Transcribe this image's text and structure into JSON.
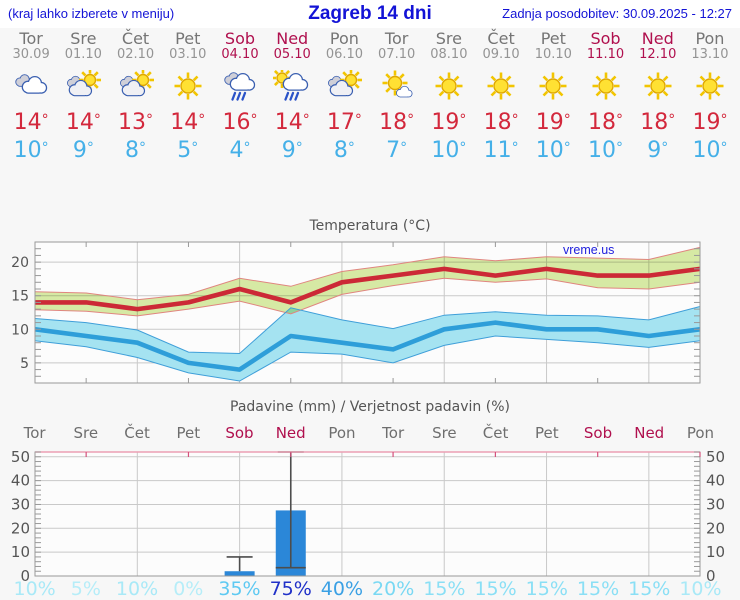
{
  "header": {
    "left_note": "(kraj lahko izberete v meniju)",
    "title": "Zagreb 14 dni",
    "updated": "Zadnja posodobitev: 30.09.2025 - 12:27"
  },
  "watermark": "vreme.us",
  "forecast": {
    "degree": "°",
    "days": [
      {
        "name": "Tor",
        "date": "30.09",
        "weekend": false,
        "icon": "cloudy",
        "tmax": "14",
        "tmin": "10"
      },
      {
        "name": "Sre",
        "date": "01.10",
        "weekend": false,
        "icon": "partly-cloudy",
        "tmax": "14",
        "tmin": "9"
      },
      {
        "name": "Čet",
        "date": "02.10",
        "weekend": false,
        "icon": "partly-cloudy",
        "tmax": "13",
        "tmin": "8"
      },
      {
        "name": "Pet",
        "date": "03.10",
        "weekend": false,
        "icon": "sunny",
        "tmax": "14",
        "tmin": "5"
      },
      {
        "name": "Sob",
        "date": "04.10",
        "weekend": true,
        "icon": "rain",
        "tmax": "16",
        "tmin": "4"
      },
      {
        "name": "Ned",
        "date": "05.10",
        "weekend": true,
        "icon": "sun-rain",
        "tmax": "14",
        "tmin": "9"
      },
      {
        "name": "Pon",
        "date": "06.10",
        "weekend": false,
        "icon": "partly-cloudy",
        "tmax": "17",
        "tmin": "8"
      },
      {
        "name": "Tor",
        "date": "07.10",
        "weekend": false,
        "icon": "mostly-sunny",
        "tmax": "18",
        "tmin": "7"
      },
      {
        "name": "Sre",
        "date": "08.10",
        "weekend": false,
        "icon": "sunny",
        "tmax": "19",
        "tmin": "10"
      },
      {
        "name": "Čet",
        "date": "09.10",
        "weekend": false,
        "icon": "sunny",
        "tmax": "18",
        "tmin": "11"
      },
      {
        "name": "Pet",
        "date": "10.10",
        "weekend": false,
        "icon": "sunny",
        "tmax": "19",
        "tmin": "10"
      },
      {
        "name": "Sob",
        "date": "11.10",
        "weekend": true,
        "icon": "sunny",
        "tmax": "18",
        "tmin": "10"
      },
      {
        "name": "Ned",
        "date": "12.10",
        "weekend": true,
        "icon": "sunny",
        "tmax": "18",
        "tmin": "9"
      },
      {
        "name": "Pon",
        "date": "13.10",
        "weekend": false,
        "icon": "sunny",
        "tmax": "19",
        "tmin": "10"
      }
    ]
  },
  "chart_data": [
    {
      "type": "line",
      "title": "Temperatura (°C)",
      "categories": [
        "Tor",
        "Sre",
        "Čet",
        "Pet",
        "Sob",
        "Ned",
        "Pon",
        "Tor",
        "Sre",
        "Čet",
        "Pet",
        "Sob",
        "Ned",
        "Pon"
      ],
      "ylim": [
        2,
        23
      ],
      "yticks": [
        5,
        10,
        15,
        20
      ],
      "grid": true,
      "x_gridline_indices": [
        2,
        4,
        6,
        8,
        10,
        12
      ],
      "series": [
        {
          "name": "max-temperature",
          "color": "#cc2936",
          "values": [
            14,
            14,
            13,
            14,
            16,
            14,
            17,
            18,
            19,
            18,
            19,
            18,
            18,
            19
          ]
        },
        {
          "name": "max-range-upper",
          "color": "#e0857f",
          "values": [
            15.6,
            15.4,
            14.4,
            15.2,
            17.6,
            16.4,
            18.6,
            19.6,
            20.8,
            20.2,
            20.8,
            20.6,
            20.4,
            22.2
          ]
        },
        {
          "name": "max-range-lower",
          "color": "#e0857f",
          "values": [
            12.9,
            12.7,
            12.0,
            13.0,
            14.2,
            12.3,
            15.2,
            16.5,
            17.6,
            17.0,
            17.5,
            16.2,
            16.0,
            17.0
          ]
        },
        {
          "name": "min-temperature",
          "color": "#2e9ed9",
          "values": [
            10,
            9,
            8,
            5,
            4,
            9,
            8,
            7,
            10,
            11,
            10,
            10,
            9,
            10
          ]
        },
        {
          "name": "min-range-upper",
          "color": "#3f9fd9",
          "values": [
            11.6,
            11.0,
            9.9,
            6.6,
            6.4,
            13.2,
            11.4,
            10.1,
            12.1,
            12.6,
            12.1,
            12.0,
            11.4,
            13.4
          ]
        },
        {
          "name": "min-range-lower",
          "color": "#3f9fd9",
          "values": [
            8.3,
            7.4,
            5.8,
            3.5,
            2.3,
            6.6,
            6.3,
            5.0,
            7.6,
            9.0,
            8.5,
            8.0,
            7.3,
            8.3
          ]
        }
      ],
      "band_fills": {
        "max": "#d9eca6",
        "min": "#a5e3f1"
      }
    },
    {
      "type": "bar",
      "title": "Padavine (mm) / Verjetnost padavin (%)",
      "categories": [
        "Tor",
        "Sre",
        "Čet",
        "Pet",
        "Sob",
        "Ned",
        "Pon",
        "Tor",
        "Sre",
        "Čet",
        "Pet",
        "Sob",
        "Ned",
        "Pon"
      ],
      "weekend_indices": [
        4,
        5,
        11,
        12
      ],
      "ylim": [
        0,
        52
      ],
      "yticks": [
        0,
        10,
        20,
        30,
        40,
        50
      ],
      "grid": true,
      "x_gridline_indices": [
        2,
        4,
        6,
        8,
        10,
        12
      ],
      "values": [
        0,
        0,
        0,
        0,
        2,
        27.5,
        0,
        0,
        0,
        0,
        0,
        0,
        0,
        0
      ],
      "ranges": [
        null,
        null,
        null,
        null,
        {
          "low": 2,
          "high": 8
        },
        {
          "low": 3.5,
          "high": 52
        },
        null,
        null,
        null,
        null,
        null,
        null,
        null,
        null
      ],
      "bar_color": "#2b87d8",
      "probabilities": [
        "10%",
        "5%",
        "10%",
        "0%",
        "35%",
        "75%",
        "40%",
        "20%",
        "15%",
        "15%",
        "15%",
        "15%",
        "15%",
        "10%"
      ],
      "prob_colors": {
        "0%": "#b6edf8",
        "5%": "#b6edf8",
        "10%": "#a9e9f7",
        "15%": "#8adff5",
        "20%": "#79d8f3",
        "35%": "#5ec9f2",
        "40%": "#3aa0e4",
        "75%": "#2030c8"
      }
    }
  ],
  "style": {
    "page_bg": "#f7f7f7",
    "plot_bg": "#fcfcfc",
    "gridline": "#c9c9c9",
    "axis": "#999999",
    "weekend_color": "#b0104e",
    "tmax_color": "#d3283c",
    "tmin_color": "#45b0e8",
    "header_color": "#1313d6",
    "whisker_color": "#4d4d4d",
    "precip_top_line": "#ec9fb3",
    "precip_top_tick": "#d4517c"
  }
}
